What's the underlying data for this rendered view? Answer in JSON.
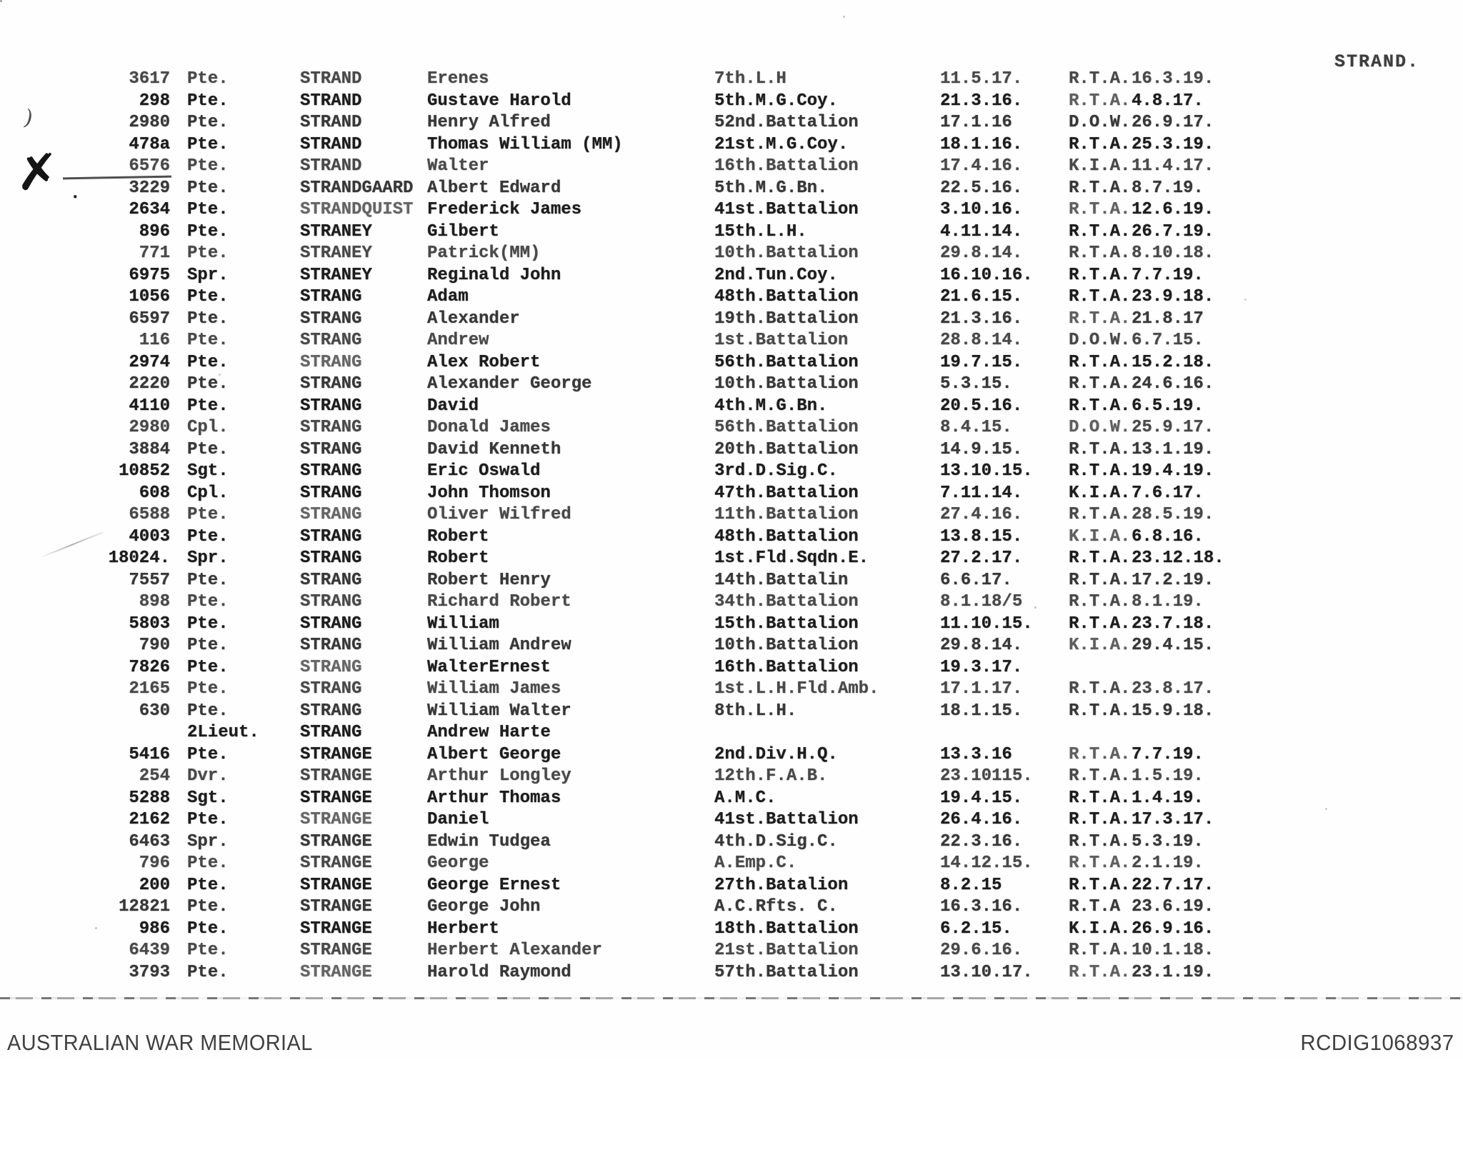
{
  "page": {
    "heading": "STRAND."
  },
  "footer": {
    "source": "AUSTRALIAN WAR MEMORIAL",
    "reference": "RCDIG1068937"
  },
  "marks": {
    "x_mark": "✗",
    "leading_dot": ".",
    "stray_paren": ")"
  },
  "table": {
    "columns": [
      "service_number",
      "rank",
      "surname",
      "given_names",
      "unit",
      "date_embarked",
      "outcome_code",
      "date_outcome"
    ],
    "rows": [
      [
        "3617",
        "Pte.",
        "STRAND",
        "Erenes",
        "7th.L.H",
        "11.5.17.",
        "R.T.A.",
        "16.3.19."
      ],
      [
        "298",
        "Pte.",
        "STRAND",
        "Gustave Harold",
        "5th.M.G.Coy.",
        "21.3.16.",
        "R.T.A.",
        "4.8.17."
      ],
      [
        "2980",
        "Pte.",
        "STRAND",
        "Henry Alfred",
        "52nd.Battalion",
        "17.1.16",
        "D.O.W.",
        "26.9.17."
      ],
      [
        "478a",
        "Pte.",
        "STRAND",
        "Thomas William (MM)",
        "21st.M.G.Coy.",
        "18.1.16.",
        "R.T.A.",
        "25.3.19."
      ],
      [
        "6576",
        "Pte.",
        "STRAND",
        "Walter",
        "16th.Battalion",
        "17.4.16.",
        "K.I.A.",
        "11.4.17."
      ],
      [
        "3229",
        "Pte.",
        "STRANDGAARD",
        "Albert Edward",
        "5th.M.G.Bn.",
        "22.5.16.",
        "R.T.A.",
        "8.7.19."
      ],
      [
        "2634",
        "Pte.",
        "STRANDQUIST",
        "Frederick James",
        "41st.Battalion",
        "3.10.16.",
        "R.T.A.",
        "12.6.19."
      ],
      [
        "896",
        "Pte.",
        "STRANEY",
        "Gilbert",
        "15th.L.H.",
        "4.11.14.",
        "R.T.A.",
        "26.7.19."
      ],
      [
        "771",
        "Pte.",
        "STRANEY",
        "Patrick(MM)",
        "10th.Battalion",
        "29.8.14.",
        "R.T.A.",
        "8.10.18."
      ],
      [
        "6975",
        "Spr.",
        "STRANEY",
        "Reginald John",
        "2nd.Tun.Coy.",
        "16.10.16.",
        "R.T.A.",
        "7.7.19."
      ],
      [
        "1056",
        "Pte.",
        "STRANG",
        "Adam",
        "48th.Battalion",
        "21.6.15.",
        "R.T.A.",
        "23.9.18."
      ],
      [
        "6597",
        "Pte.",
        "STRANG",
        "Alexander",
        "19th.Battalion",
        "21.3.16.",
        "R.T.A.",
        "21.8.17"
      ],
      [
        "116",
        "Pte.",
        "STRANG",
        "Andrew",
        "1st.Battalion",
        "28.8.14.",
        "D.O.W.",
        "6.7.15."
      ],
      [
        "2974",
        "Pte.",
        "STRANG",
        "Alex Robert",
        "56th.Battalion",
        "19.7.15.",
        "R.T.A.",
        "15.2.18."
      ],
      [
        "2220",
        "Pte.",
        "STRANG",
        "Alexander George",
        "10th.Battalion",
        "5.3.15.",
        "R.T.A.",
        "24.6.16."
      ],
      [
        "4110",
        "Pte.",
        "STRANG",
        "David",
        "4th.M.G.Bn.",
        "20.5.16.",
        "R.T.A.",
        "6.5.19."
      ],
      [
        "2980",
        "Cpl.",
        "STRANG",
        "Donald James",
        "56th.Battalion",
        "8.4.15.",
        "D.O.W.",
        "25.9.17."
      ],
      [
        "3884",
        "Pte.",
        "STRANG",
        "David Kenneth",
        "20th.Battalion",
        "14.9.15.",
        "R.T.A.",
        "13.1.19."
      ],
      [
        "10852",
        "Sgt.",
        "STRANG",
        "Eric Oswald",
        "3rd.D.Sig.C.",
        "13.10.15.",
        "R.T.A.",
        "19.4.19."
      ],
      [
        "608",
        "Cpl.",
        "STRANG",
        "John Thomson",
        "47th.Battalion",
        "7.11.14.",
        "K.I.A.",
        "7.6.17."
      ],
      [
        "6588",
        "Pte.",
        "STRANG",
        "Oliver Wilfred",
        "11th.Battalion",
        "27.4.16.",
        "R.T.A.",
        "28.5.19."
      ],
      [
        "4003",
        "Pte.",
        "STRANG",
        "Robert",
        "48th.Battalion",
        "13.8.15.",
        "K.I.A.",
        "6.8.16."
      ],
      [
        "18024.",
        "Spr.",
        "STRANG",
        "Robert",
        "1st.Fld.Sqdn.E.",
        "27.2.17.",
        "R.T.A.",
        "23.12.18."
      ],
      [
        "7557",
        "Pte.",
        "STRANG",
        "Robert Henry",
        "14th.Battalin",
        "6.6.17.",
        "R.T.A.",
        "17.2.19."
      ],
      [
        "898",
        "Pte.",
        "STRANG",
        "Richard Robert",
        "34th.Battalion",
        "8.1.18/5",
        "R.T.A.",
        "8.1.19."
      ],
      [
        "5803",
        "Pte.",
        "STRANG",
        "William",
        "15th.Battalion",
        "11.10.15.",
        "R.T.A.",
        "23.7.18."
      ],
      [
        "790",
        "Pte.",
        "STRANG",
        "William Andrew",
        "10th.Battalion",
        "29.8.14.",
        "K.I.A.",
        "29.4.15."
      ],
      [
        "7826",
        "Pte.",
        "STRANG",
        "WalterErnest",
        "16th.Battalion",
        "19.3.17.",
        "",
        ""
      ],
      [
        "2165",
        "Pte.",
        "STRANG",
        "William James",
        "1st.L.H.Fld.Amb.",
        "17.1.17.",
        "R.T.A.",
        "23.8.17."
      ],
      [
        "630",
        "Pte.",
        "STRANG",
        "William Walter",
        "8th.L.H.",
        "18.1.15.",
        "R.T.A.",
        "15.9.18."
      ],
      [
        "",
        "2Lieut.",
        "STRANG",
        "Andrew Harte",
        "",
        "",
        "",
        ""
      ],
      [
        "5416",
        "Pte.",
        "STRANGE",
        "Albert George",
        "2nd.Div.H.Q.",
        "13.3.16",
        "R.T.A.",
        "7.7.19."
      ],
      [
        "254",
        "Dvr.",
        "STRANGE",
        "Arthur Longley",
        "12th.F.A.B.",
        "23.10115.",
        "R.T.A.",
        "1.5.19."
      ],
      [
        "5288",
        "Sgt.",
        "STRANGE",
        "Arthur Thomas",
        "A.M.C.",
        "19.4.15.",
        "R.T.A.",
        "1.4.19."
      ],
      [
        "2162",
        "Pte.",
        "STRANGE",
        "Daniel",
        "41st.Battalion",
        "26.4.16.",
        "R.T.A.",
        "17.3.17."
      ],
      [
        "6463",
        "Spr.",
        "STRANGE",
        "Edwin Tudgea",
        "4th.D.Sig.C.",
        "22.3.16.",
        "R.T.A.",
        "5.3.19."
      ],
      [
        "796",
        "Pte.",
        "STRANGE",
        "George",
        "A.Emp.C.",
        "14.12.15.",
        "R.T.A.",
        "2.1.19."
      ],
      [
        "200",
        "Pte.",
        "STRANGE",
        "George Ernest",
        "27th.Batalion",
        "8.2.15",
        "R.T.A.",
        "22.7.17."
      ],
      [
        "12821",
        "Pte.",
        "STRANGE",
        "George John",
        "A.C.Rfts. C.",
        "16.3.16.",
        "R.T.A",
        "23.6.19."
      ],
      [
        "986",
        "Pte.",
        "STRANGE",
        "Herbert",
        "18th.Battalion",
        "6.2.15.",
        "K.I.A.",
        "26.9.16."
      ],
      [
        "6439",
        "Pte.",
        "STRANGE",
        "Herbert Alexander",
        "21st.Battalion",
        "29.6.16.",
        "R.T.A.",
        "10.1.18."
      ],
      [
        "3793",
        "Pte.",
        "STRANGE",
        "Harold Raymond",
        "57th.Battalion",
        "13.10.17.",
        "R.T.A.",
        "23.1.19."
      ]
    ]
  }
}
